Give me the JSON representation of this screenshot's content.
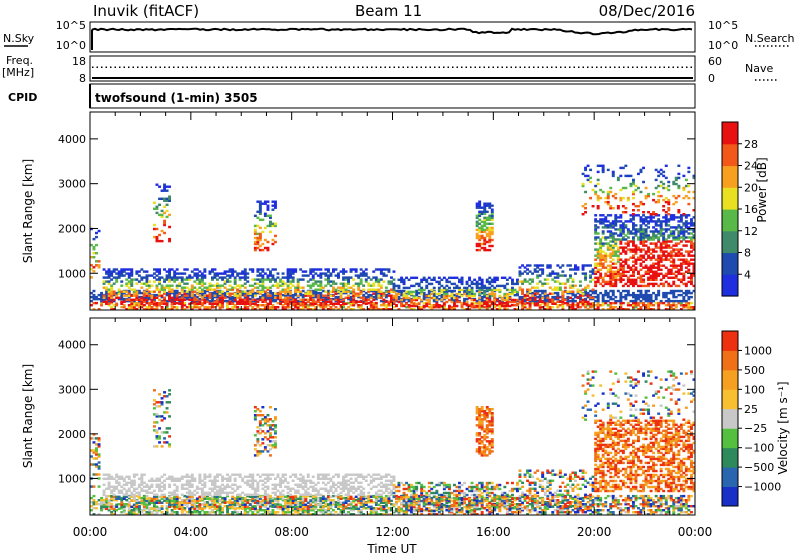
{
  "header": {
    "station": "Inuvik (fitACF)",
    "beam": "Beam 11",
    "date": "08/Dec/2016"
  },
  "top_panels": {
    "nsky_label": "N.Sky",
    "nsky_ticks": [
      "10^5",
      "10^0"
    ],
    "nsearch_label": "N.Search",
    "nsearch_ticks": [
      "10^5",
      "10^0"
    ],
    "freq_label": "Freq.",
    "freq_unit": "[MHz]",
    "freq_ticks": [
      "18",
      "8"
    ],
    "nave_label": "Nave",
    "nave_ticks": [
      "60",
      "0"
    ],
    "cpid_label": "CPID",
    "cpid_value": "twofsound (1-min) 3505",
    "nsky_level": 0.75,
    "freq_dotted_level": 0.55,
    "freq_solid_level": 0.12
  },
  "x_axis": {
    "label": "Time UT",
    "ticks": [
      "00:00",
      "04:00",
      "08:00",
      "12:00",
      "16:00",
      "20:00",
      "00:00"
    ],
    "range_hours": [
      0,
      24
    ]
  },
  "chart_data": [
    {
      "type": "heatmap",
      "name": "power",
      "ylabel": "Slant Range [km]",
      "yticks": [
        1000,
        2000,
        3000,
        4000
      ],
      "ylim": [
        180,
        4600
      ],
      "xlim_hours": [
        0,
        24
      ],
      "colorbar": {
        "label": "Power [dB]",
        "ticks": [
          "4",
          "8",
          "12",
          "16",
          "20",
          "24",
          "28"
        ],
        "colors": [
          "#1f2fe0",
          "#1f4ab0",
          "#3f8a6a",
          "#58b848",
          "#e8e020",
          "#f7a020",
          "#f25818",
          "#e81010"
        ]
      }
    },
    {
      "type": "heatmap",
      "name": "velocity",
      "ylabel": "Slant Range [km]",
      "yticks": [
        1000,
        2000,
        3000,
        4000
      ],
      "ylim": [
        180,
        4600
      ],
      "xlim_hours": [
        0,
        24
      ],
      "colorbar": {
        "label": "Velocity [m s⁻¹]",
        "ticks": [
          "1000",
          "500",
          "100",
          "25",
          "−25",
          "−100",
          "−500",
          "−1000"
        ],
        "colors": [
          "#1830c8",
          "#2a66b0",
          "#2e8a5a",
          "#55c040",
          "#c8c8c8",
          "#f8c030",
          "#f5a020",
          "#f07018",
          "#ec3010"
        ]
      }
    }
  ]
}
